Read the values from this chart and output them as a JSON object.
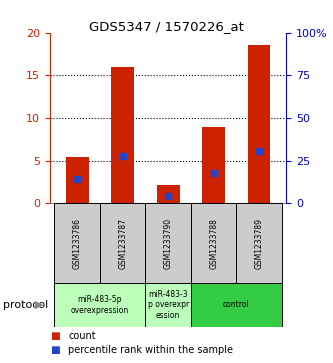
{
  "title": "GDS5347 / 1570226_at",
  "samples": [
    "GSM1233786",
    "GSM1233787",
    "GSM1233790",
    "GSM1233788",
    "GSM1233789"
  ],
  "red_values": [
    5.4,
    16.0,
    2.2,
    9.0,
    18.5
  ],
  "blue_values": [
    14.5,
    27.5,
    4.0,
    17.5,
    30.5
  ],
  "ylim_left": [
    0,
    20
  ],
  "ylim_right": [
    0,
    100
  ],
  "yticks_left": [
    0,
    5,
    10,
    15,
    20
  ],
  "yticks_right": [
    0,
    25,
    50,
    75,
    100
  ],
  "ytick_labels_right": [
    "0",
    "25",
    "50",
    "75",
    "100%"
  ],
  "red_color": "#cc2200",
  "blue_color": "#2244cc",
  "bar_width": 0.5,
  "protocol_groups": [
    {
      "label": "miR-483-5p\noverexpression",
      "indices": [
        0,
        1
      ],
      "color": "#bbffbb"
    },
    {
      "label": "miR-483-3\np overexpr\nession",
      "indices": [
        2
      ],
      "color": "#bbffbb"
    },
    {
      "label": "control",
      "indices": [
        3,
        4
      ],
      "color": "#33cc44"
    }
  ],
  "protocol_label": "protocol",
  "legend_count": "count",
  "legend_percentile": "percentile rank within the sample",
  "background_color": "#ffffff",
  "plot_bg_color": "#ffffff",
  "label_color_left": "#cc2200",
  "label_color_right": "#0000cc",
  "sample_box_color": "#cccccc"
}
